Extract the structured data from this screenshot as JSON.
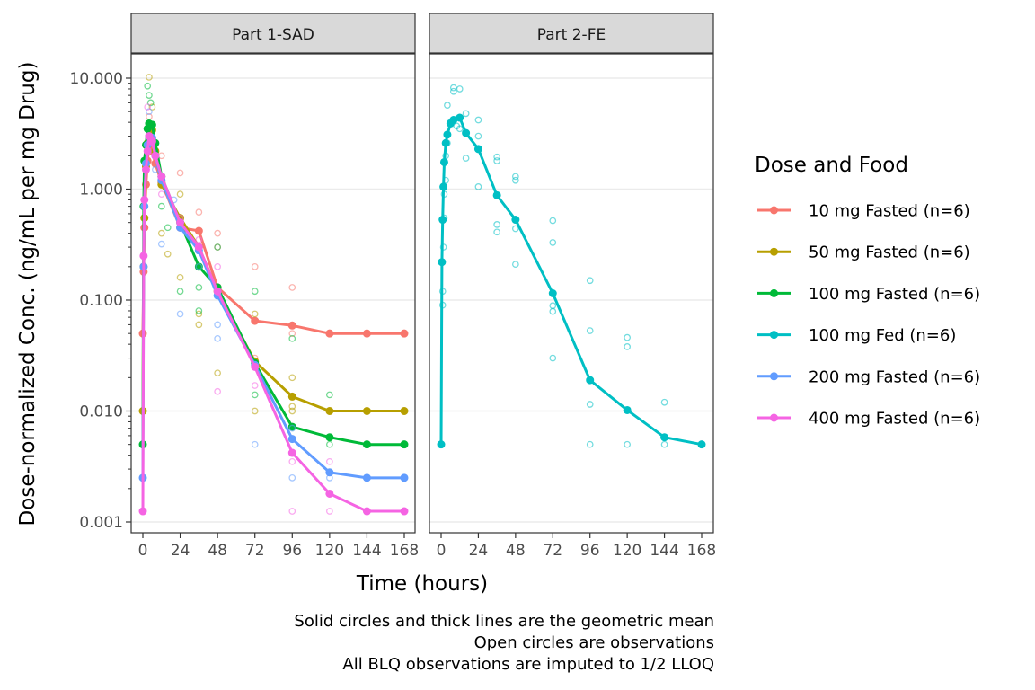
{
  "chart_data": {
    "type": "line",
    "facets": [
      "Part 1-SAD",
      "Part 2-FE"
    ],
    "xlabel": "Time (hours)",
    "ylabel": "Dose-normalized Conc. (ng/mL per mg Drug)",
    "yscale": "log10",
    "ylim": [
      0.001,
      10
    ],
    "xlim": [
      0,
      168
    ],
    "x_ticks": [
      0,
      24,
      48,
      72,
      96,
      120,
      144,
      168
    ],
    "x_tick_labels": [
      "0",
      "24",
      "48",
      "72",
      "96",
      "120",
      "144",
      "168"
    ],
    "y_ticks": [
      0.001,
      0.01,
      0.1,
      1,
      10
    ],
    "y_tick_labels": [
      "0.001",
      "0.010",
      "0.100",
      "1.000",
      "10.000"
    ],
    "grid": true,
    "legend": {
      "title": "Dose and Food",
      "placement": "right",
      "entries": [
        {
          "label": "10 mg Fasted (n=6)",
          "color": "#F8766D"
        },
        {
          "label": "50 mg Fasted (n=6)",
          "color": "#B79F00"
        },
        {
          "label": "100 mg Fasted (n=6)",
          "color": "#00BA38"
        },
        {
          "label": "100 mg Fed (n=6)",
          "color": "#00BFC4"
        },
        {
          "label": "200 mg Fasted (n=6)",
          "color": "#619CFF"
        },
        {
          "label": "400 mg Fasted (n=6)",
          "color": "#F564E3"
        }
      ]
    },
    "series": [
      {
        "name": "10 mg Fasted (n=6)",
        "facet": 0,
        "color": "#F8766D",
        "x": [
          0,
          0.5,
          1,
          2,
          3,
          4,
          6,
          8,
          12,
          24,
          36,
          48,
          72,
          96,
          120,
          144,
          168
        ],
        "values": [
          0.05,
          0.18,
          0.45,
          1.1,
          1.8,
          2.5,
          2.2,
          1.7,
          1.15,
          0.45,
          0.42,
          0.13,
          0.065,
          0.059,
          0.05,
          0.05,
          0.05
        ],
        "obs": [
          [
            2,
            1.5
          ],
          [
            4,
            4.5
          ],
          [
            6,
            3.0
          ],
          [
            12,
            2.0
          ],
          [
            24,
            1.4
          ],
          [
            36,
            0.62
          ],
          [
            48,
            0.4
          ],
          [
            48,
            0.3
          ],
          [
            72,
            0.2
          ],
          [
            72,
            0.03
          ],
          [
            96,
            0.13
          ],
          [
            96,
            0.05
          ]
        ]
      },
      {
        "name": "50 mg Fasted (n=6)",
        "facet": 0,
        "color": "#B79F00",
        "x": [
          0,
          0.5,
          1,
          2,
          3,
          4,
          6,
          8,
          12,
          24,
          36,
          48,
          72,
          96,
          120,
          144,
          168
        ],
        "values": [
          0.01,
          0.2,
          0.55,
          1.6,
          2.6,
          3.5,
          3.4,
          2.2,
          1.1,
          0.55,
          0.3,
          0.12,
          0.028,
          0.0135,
          0.01,
          0.01,
          0.01
        ],
        "obs": [
          [
            4,
            10.2
          ],
          [
            6,
            5.5
          ],
          [
            8,
            2.6
          ],
          [
            12,
            0.4
          ],
          [
            16,
            0.26
          ],
          [
            24,
            0.9
          ],
          [
            24,
            0.16
          ],
          [
            36,
            0.075
          ],
          [
            36,
            0.06
          ],
          [
            48,
            0.022
          ],
          [
            72,
            0.075
          ],
          [
            72,
            0.01
          ],
          [
            96,
            0.02
          ],
          [
            96,
            0.01
          ],
          [
            96,
            0.011
          ]
        ]
      },
      {
        "name": "100 mg Fasted (n=6)",
        "facet": 0,
        "color": "#00BA38",
        "x": [
          0,
          0.5,
          1,
          2,
          3,
          4,
          6,
          8,
          12,
          24,
          36,
          48,
          72,
          96,
          120,
          144,
          168
        ],
        "values": [
          0.005,
          0.7,
          1.8,
          2.5,
          3.5,
          3.9,
          3.8,
          2.6,
          1.3,
          0.5,
          0.2,
          0.13,
          0.027,
          0.0072,
          0.0058,
          0.005,
          0.005
        ],
        "obs": [
          [
            3,
            8.5
          ],
          [
            4,
            7.0
          ],
          [
            5,
            6.0
          ],
          [
            8,
            2.0
          ],
          [
            12,
            0.7
          ],
          [
            16,
            0.45
          ],
          [
            24,
            0.12
          ],
          [
            36,
            0.13
          ],
          [
            36,
            0.08
          ],
          [
            48,
            0.3
          ],
          [
            72,
            0.12
          ],
          [
            72,
            0.014
          ],
          [
            96,
            0.045
          ],
          [
            120,
            0.014
          ],
          [
            120,
            0.005
          ]
        ]
      },
      {
        "name": "200 mg Fasted (n=6)",
        "facet": 0,
        "color": "#619CFF",
        "x": [
          0,
          0.5,
          1,
          2,
          3,
          4,
          6,
          8,
          12,
          24,
          36,
          48,
          72,
          96,
          120,
          144,
          168
        ],
        "values": [
          0.0025,
          0.2,
          0.7,
          1.7,
          2.5,
          3.0,
          2.9,
          2.0,
          1.2,
          0.45,
          0.28,
          0.11,
          0.026,
          0.0056,
          0.0028,
          0.0025,
          0.0025
        ],
        "obs": [
          [
            4,
            5.0
          ],
          [
            8,
            1.5
          ],
          [
            12,
            0.32
          ],
          [
            20,
            0.8
          ],
          [
            24,
            0.075
          ],
          [
            36,
            0.2
          ],
          [
            48,
            0.06
          ],
          [
            48,
            0.045
          ],
          [
            72,
            0.005
          ],
          [
            96,
            0.0025
          ],
          [
            96,
            0.007
          ],
          [
            120,
            0.0025
          ]
        ]
      },
      {
        "name": "400 mg Fasted (n=6)",
        "facet": 0,
        "color": "#F564E3",
        "x": [
          0,
          0.5,
          1,
          2,
          3,
          4,
          6,
          8,
          12,
          24,
          36,
          48,
          72,
          96,
          120,
          144,
          168
        ],
        "values": [
          0.00125,
          0.25,
          0.8,
          1.5,
          2.2,
          3.0,
          2.7,
          2.0,
          1.3,
          0.5,
          0.3,
          0.12,
          0.025,
          0.0042,
          0.0018,
          0.00125,
          0.00125
        ],
        "obs": [
          [
            3,
            5.5
          ],
          [
            6,
            2.6
          ],
          [
            12,
            0.9
          ],
          [
            24,
            0.55
          ],
          [
            36,
            0.35
          ],
          [
            48,
            0.2
          ],
          [
            48,
            0.015
          ],
          [
            72,
            0.017
          ],
          [
            96,
            0.0035
          ],
          [
            96,
            0.00125
          ],
          [
            120,
            0.0035
          ],
          [
            120,
            0.00125
          ]
        ]
      },
      {
        "name": "100 mg Fed (n=6)",
        "facet": 1,
        "color": "#00BFC4",
        "x": [
          0,
          0.5,
          1,
          1.5,
          2,
          3,
          4,
          6,
          8,
          12,
          16,
          24,
          36,
          48,
          72,
          96,
          120,
          144,
          168
        ],
        "values": [
          0.005,
          0.22,
          0.53,
          1.05,
          1.75,
          2.6,
          3.1,
          3.9,
          4.2,
          4.4,
          3.2,
          2.3,
          0.88,
          0.53,
          0.115,
          0.019,
          0.0102,
          0.0058,
          0.005
        ],
        "obs": [
          [
            1,
            0.09
          ],
          [
            1,
            0.12
          ],
          [
            1.5,
            0.3
          ],
          [
            2,
            0.55
          ],
          [
            2,
            0.9
          ],
          [
            3,
            1.2
          ],
          [
            3,
            2.0
          ],
          [
            4,
            5.7
          ],
          [
            4,
            2.6
          ],
          [
            6,
            4.0
          ],
          [
            8,
            8.2
          ],
          [
            8,
            7.6
          ],
          [
            10,
            3.7
          ],
          [
            12,
            8.0
          ],
          [
            12,
            3.5
          ],
          [
            16,
            4.8
          ],
          [
            16,
            1.9
          ],
          [
            24,
            4.2
          ],
          [
            24,
            3.0
          ],
          [
            24,
            1.05
          ],
          [
            36,
            1.95
          ],
          [
            36,
            1.8
          ],
          [
            36,
            0.48
          ],
          [
            36,
            0.41
          ],
          [
            48,
            1.3
          ],
          [
            48,
            1.2
          ],
          [
            48,
            0.44
          ],
          [
            48,
            0.21
          ],
          [
            72,
            0.52
          ],
          [
            72,
            0.33
          ],
          [
            72,
            0.089
          ],
          [
            72,
            0.079
          ],
          [
            72,
            0.03
          ],
          [
            96,
            0.15
          ],
          [
            96,
            0.053
          ],
          [
            96,
            0.0115
          ],
          [
            96,
            0.005
          ],
          [
            120,
            0.046
          ],
          [
            120,
            0.038
          ],
          [
            120,
            0.005
          ],
          [
            144,
            0.012
          ],
          [
            144,
            0.005
          ]
        ]
      }
    ]
  },
  "caption": {
    "lines": [
      "Solid circles and thick lines are the geometric mean",
      "Open circles are observations",
      "All BLQ observations are imputed to 1/2 LLOQ"
    ]
  }
}
